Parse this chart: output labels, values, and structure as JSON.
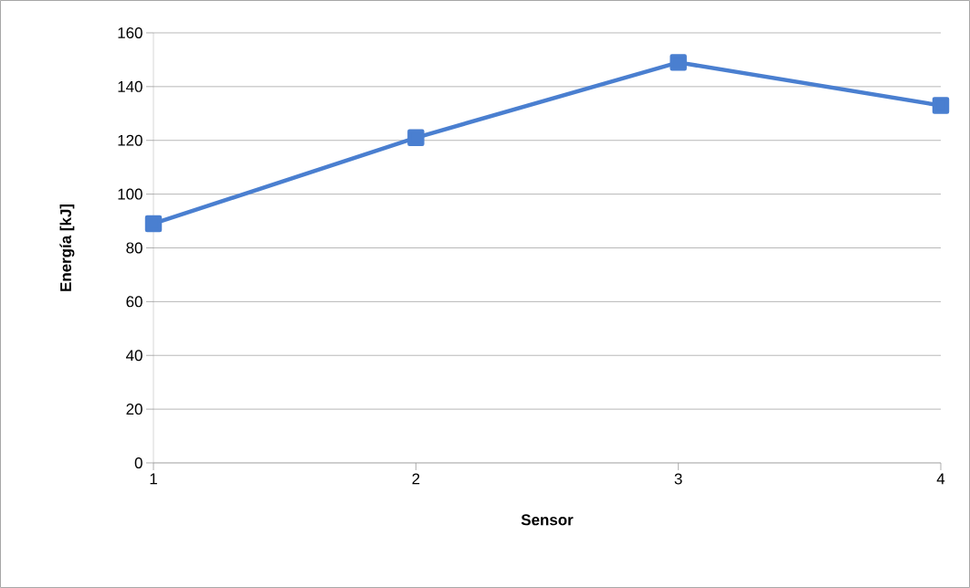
{
  "chart_data": {
    "type": "line",
    "xlabel": "Sensor",
    "ylabel": "Energía [kJ]",
    "x": [
      1,
      2,
      3,
      4
    ],
    "series": [
      {
        "color": "#4a7fd0",
        "values": [
          89,
          121,
          149,
          133
        ]
      }
    ],
    "xlim": [
      1,
      4
    ],
    "xticks": [
      1,
      2,
      3,
      4
    ],
    "ylim": [
      0,
      160
    ],
    "yticks": [
      0,
      20,
      40,
      60,
      80,
      100,
      120,
      140,
      160
    ],
    "grid": "y",
    "marker": "square",
    "line_style": "solid"
  }
}
